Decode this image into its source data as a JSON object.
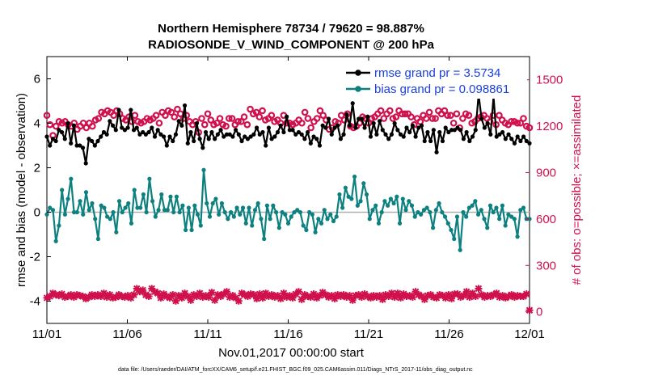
{
  "chart_data": {
    "type": "line",
    "title": "Northern Hemisphere 78734 / 79620 = 98.887%",
    "subtitle": "RADIOSONDE_V_WIND_COMPONENT @ 200 hPa",
    "xlabel": "Nov.01,2017 00:00:00 start",
    "ylabel": "rmse and bias (model - observation)",
    "y2label": "# of obs: o=possible; ×=assimilated",
    "footnote": "data file: /Users/raeder/DAI/ATM_forcXX/CAM6_setup/f.e21.FHIST_BGC.f09_025.CAM6assim.011/Diags_NTrS_2017-11/obs_diag_output.nc",
    "xlim": [
      0,
      30
    ],
    "ylim": [
      -5,
      7
    ],
    "y2lim": [
      -75,
      1650
    ],
    "x_ticks": [
      0,
      5,
      10,
      15,
      20,
      25,
      30
    ],
    "x_tick_labels": [
      "11/01",
      "11/06",
      "11/11",
      "11/16",
      "11/21",
      "11/26",
      "12/01"
    ],
    "y_ticks": [
      -4,
      -2,
      0,
      2,
      4,
      6
    ],
    "y_tick_labels": [
      "-4",
      "-2",
      "0",
      "2",
      "4",
      "6"
    ],
    "y2_ticks": [
      0,
      300,
      600,
      900,
      1200,
      1500
    ],
    "y2_tick_labels": [
      "0",
      "300",
      "600",
      "900",
      "1200",
      "1500"
    ],
    "zero_line": 0,
    "legend_location": "top-right",
    "series": [
      {
        "name": "rmse grand pr = 3.5734",
        "axis": "left",
        "color": "#000000",
        "marker": "filled-circle",
        "values": [
          3.4,
          3.0,
          3.3,
          3.2,
          3.7,
          3.6,
          3.3,
          4.0,
          3.1,
          3.9,
          3.0,
          3.0,
          2.9,
          2.2,
          3.3,
          3.2,
          3.0,
          3.2,
          3.4,
          3.6,
          3.5,
          4.1,
          3.9,
          3.7,
          4.6,
          3.8,
          3.7,
          3.8,
          4.6,
          3.7,
          3.8,
          3.5,
          3.6,
          3.5,
          3.6,
          3.8,
          3.4,
          3.7,
          3.5,
          3.4,
          3.0,
          3.4,
          3.2,
          3.5,
          4.1,
          3.9,
          4.8,
          3.1,
          3.6,
          3.2,
          4.0,
          3.3,
          2.9,
          3.6,
          3.3,
          3.6,
          3.3,
          3.5,
          3.7,
          3.4,
          3.5,
          3.5,
          3.4,
          3.7,
          3.5,
          3.2,
          3.4,
          3.3,
          3.4,
          3.5,
          3.8,
          3.5,
          3.6,
          3.0,
          3.8,
          3.3,
          3.4,
          3.6,
          3.9,
          3.6,
          4.3,
          3.7,
          3.7,
          3.5,
          3.6,
          3.5,
          3.3,
          3.6,
          3.1,
          3.4,
          3.3,
          3.0,
          3.9,
          3.8,
          4.2,
          3.5,
          3.8,
          3.9,
          3.3,
          3.5,
          4.4,
          3.9,
          4.9,
          3.8,
          4.2,
          4.2,
          3.8,
          4.3,
          3.4,
          4.0,
          3.5,
          4.1,
          3.7,
          3.5,
          3.3,
          3.5,
          4.0,
          3.7,
          3.5,
          3.4,
          3.8,
          3.6,
          3.9,
          3.4,
          3.8,
          3.9,
          3.2,
          3.6,
          3.2,
          3.7,
          2.7,
          3.6,
          3.2,
          3.8,
          3.6,
          3.7,
          3.7,
          3.8,
          3.7,
          3.3,
          3.6,
          3.2,
          3.4,
          3.7,
          5.3,
          4.2,
          3.8,
          4.0,
          3.5,
          5.2,
          3.4,
          3.5,
          3.6,
          3.3,
          3.5,
          3.3,
          3.1,
          3.4,
          3.2,
          3.4,
          3.2,
          3.1
        ]
      },
      {
        "name": "bias grand pr = 0.098861",
        "axis": "left",
        "color": "#0d8080",
        "marker": "filled-circle",
        "values": [
          -0.1,
          0.2,
          0.1,
          -1.3,
          -0.6,
          1.0,
          -0.1,
          0.6,
          1.5,
          0.0,
          0.0,
          0.5,
          -0.1,
          0.9,
          0.1,
          0.4,
          -0.3,
          -1.2,
          0.3,
          0.2,
          -0.2,
          -0.3,
          0.0,
          -0.9,
          0.5,
          0.0,
          0.2,
          0.4,
          -0.5,
          1.0,
          0.2,
          0.2,
          0.8,
          0.0,
          1.5,
          0.5,
          -0.2,
          0.1,
          0.8,
          0.1,
          0.1,
          0.7,
          0.0,
          0.7,
          0.0,
          0.3,
          -0.8,
          0.2,
          -0.8,
          0.3,
          -0.1,
          -0.6,
          1.9,
          0.4,
          -0.2,
          0.4,
          0.6,
          -0.1,
          0.4,
          0.0,
          -0.3,
          0.0,
          -0.2,
          0.2,
          -0.1,
          0.2,
          -0.5,
          0.2,
          -0.6,
          0.1,
          0.4,
          -0.3,
          -1.2,
          0.3,
          -0.3,
          0.3,
          0.0,
          -0.7,
          0.0,
          -0.1,
          -0.5,
          -0.2,
          0.0,
          0.1,
          0.0,
          -0.6,
          -0.8,
          0.0,
          -0.1,
          -0.9,
          -0.3,
          -0.5,
          0.1,
          -0.3,
          -0.1,
          -0.4,
          -0.2,
          0.8,
          0.2,
          1.1,
          0.7,
          0.6,
          1.6,
          0.3,
          0.5,
          1.3,
          0.8,
          -0.3,
          0.1,
          0.3,
          -0.5,
          0.0,
          0.5,
          0.3,
          0.6,
          0.4,
          0.7,
          -0.5,
          0.6,
          0.1,
          0.5,
          0.3,
          -0.2,
          0.0,
          -0.1,
          0.1,
          0.2,
          0.0,
          -0.7,
          0.1,
          0.4,
          0.0,
          -0.2,
          -0.5,
          -0.8,
          -1.2,
          -0.2,
          -1.7,
          0.0,
          -0.2,
          0.2,
          0.3,
          0.5,
          -0.1,
          0.1,
          -0.3,
          -0.7,
          0.3,
          0.0,
          0.2,
          -0.3,
          0.3,
          -0.6,
          -0.1,
          -0.2,
          -0.3,
          -1.1,
          0.1,
          0.2,
          -0.3,
          -0.3
        ]
      },
      {
        "name": "# of obs possible",
        "axis": "right",
        "color": "#d0104c",
        "marker": "circle",
        "values": [
          1270,
          1210,
          1140,
          1200,
          1230,
          1220,
          1230,
          1210,
          1200,
          1220,
          1180,
          1200,
          1220,
          1190,
          1220,
          1200,
          1240,
          1250,
          1290,
          1280,
          1300,
          1290,
          1270,
          1300,
          1280,
          1250,
          1240,
          1260,
          1230,
          1270,
          1230,
          1220,
          1230,
          1250,
          1240,
          1250,
          1270,
          1220,
          1290,
          1270,
          1300,
          1290,
          1260,
          1310,
          1280,
          1250,
          1270,
          1230,
          1210,
          1230,
          1160,
          1250,
          1210,
          1280,
          1240,
          1210,
          1220,
          1250,
          1210,
          1200,
          1250,
          1250,
          1210,
          1230,
          1230,
          1260,
          1210,
          1310,
          1280,
          1290,
          1260,
          1300,
          1240,
          1250,
          1270,
          1230,
          1240,
          1220,
          1270,
          1220,
          1220,
          1210,
          1220,
          1240,
          1220,
          1290,
          1250,
          1190,
          1230,
          1250,
          1300,
          1270,
          1240,
          1180,
          1190,
          1230,
          1220,
          1270,
          1240,
          1280,
          1200,
          1190,
          1200,
          1220,
          1260,
          1250,
          1220,
          1250,
          1260,
          1280,
          1300,
          1250,
          1280,
          1300,
          1250,
          1260,
          1300,
          1280,
          1280,
          1280,
          1260,
          1210,
          1250,
          1230,
          1270,
          1250,
          1290,
          1250,
          1250,
          1300,
          1280,
          1300,
          1270,
          1270,
          1220,
          1280,
          1190,
          1250,
          1280,
          1270,
          1220,
          1230,
          1250,
          1260,
          1270,
          1250,
          1230,
          1270,
          1210,
          1270,
          1240,
          1220,
          1210,
          1230,
          1230,
          1220,
          1220,
          1250,
          1200,
          1190
        ]
      },
      {
        "name": "# of obs assimilated",
        "axis": "right",
        "color": "#d0104c",
        "marker": "x",
        "values": [
          90,
          100,
          120,
          110,
          105,
          115,
          95,
          100,
          110,
          95,
          110,
          105,
          100,
          85,
          95,
          110,
          100,
          110,
          100,
          120,
          95,
          110,
          90,
          95,
          110,
          100,
          95,
          105,
          90,
          110,
          150,
          130,
          140,
          110,
          100,
          150,
          130,
          120,
          90,
          115,
          100,
          90,
          110,
          70,
          105,
          90,
          120,
          100,
          75,
          110,
          100,
          120,
          95,
          105,
          95,
          125,
          75,
          110,
          100,
          115,
          130,
          95,
          105,
          90,
          70,
          120,
          110,
          100,
          115,
          110,
          85,
          115,
          90,
          120,
          100,
          110,
          95,
          105,
          85,
          120,
          95,
          105,
          90,
          115,
          130,
          80,
          110,
          100,
          95,
          115,
          90,
          105,
          125,
          110,
          95,
          105,
          85,
          110,
          100,
          110,
          95,
          105,
          75,
          105,
          110,
          95,
          115,
          100,
          90,
          105,
          95,
          105,
          80,
          110,
          100,
          120,
          95,
          120,
          90,
          115,
          100,
          105,
          95,
          130,
          110,
          100,
          80,
          105,
          110,
          95,
          90,
          110,
          105,
          90,
          110,
          85,
          115,
          115,
          95,
          105,
          130,
          95,
          120,
          100,
          150,
          110,
          95,
          105,
          100,
          110,
          120,
          95,
          105,
          90,
          100,
          110,
          95,
          105,
          100,
          100,
          115,
          10
        ]
      }
    ]
  },
  "colors": {
    "rmse": "#000000",
    "bias": "#0d8080",
    "obs": "#d0104c",
    "legend_text": "#1a3fe0",
    "zero_line": "#b0b0b0"
  }
}
